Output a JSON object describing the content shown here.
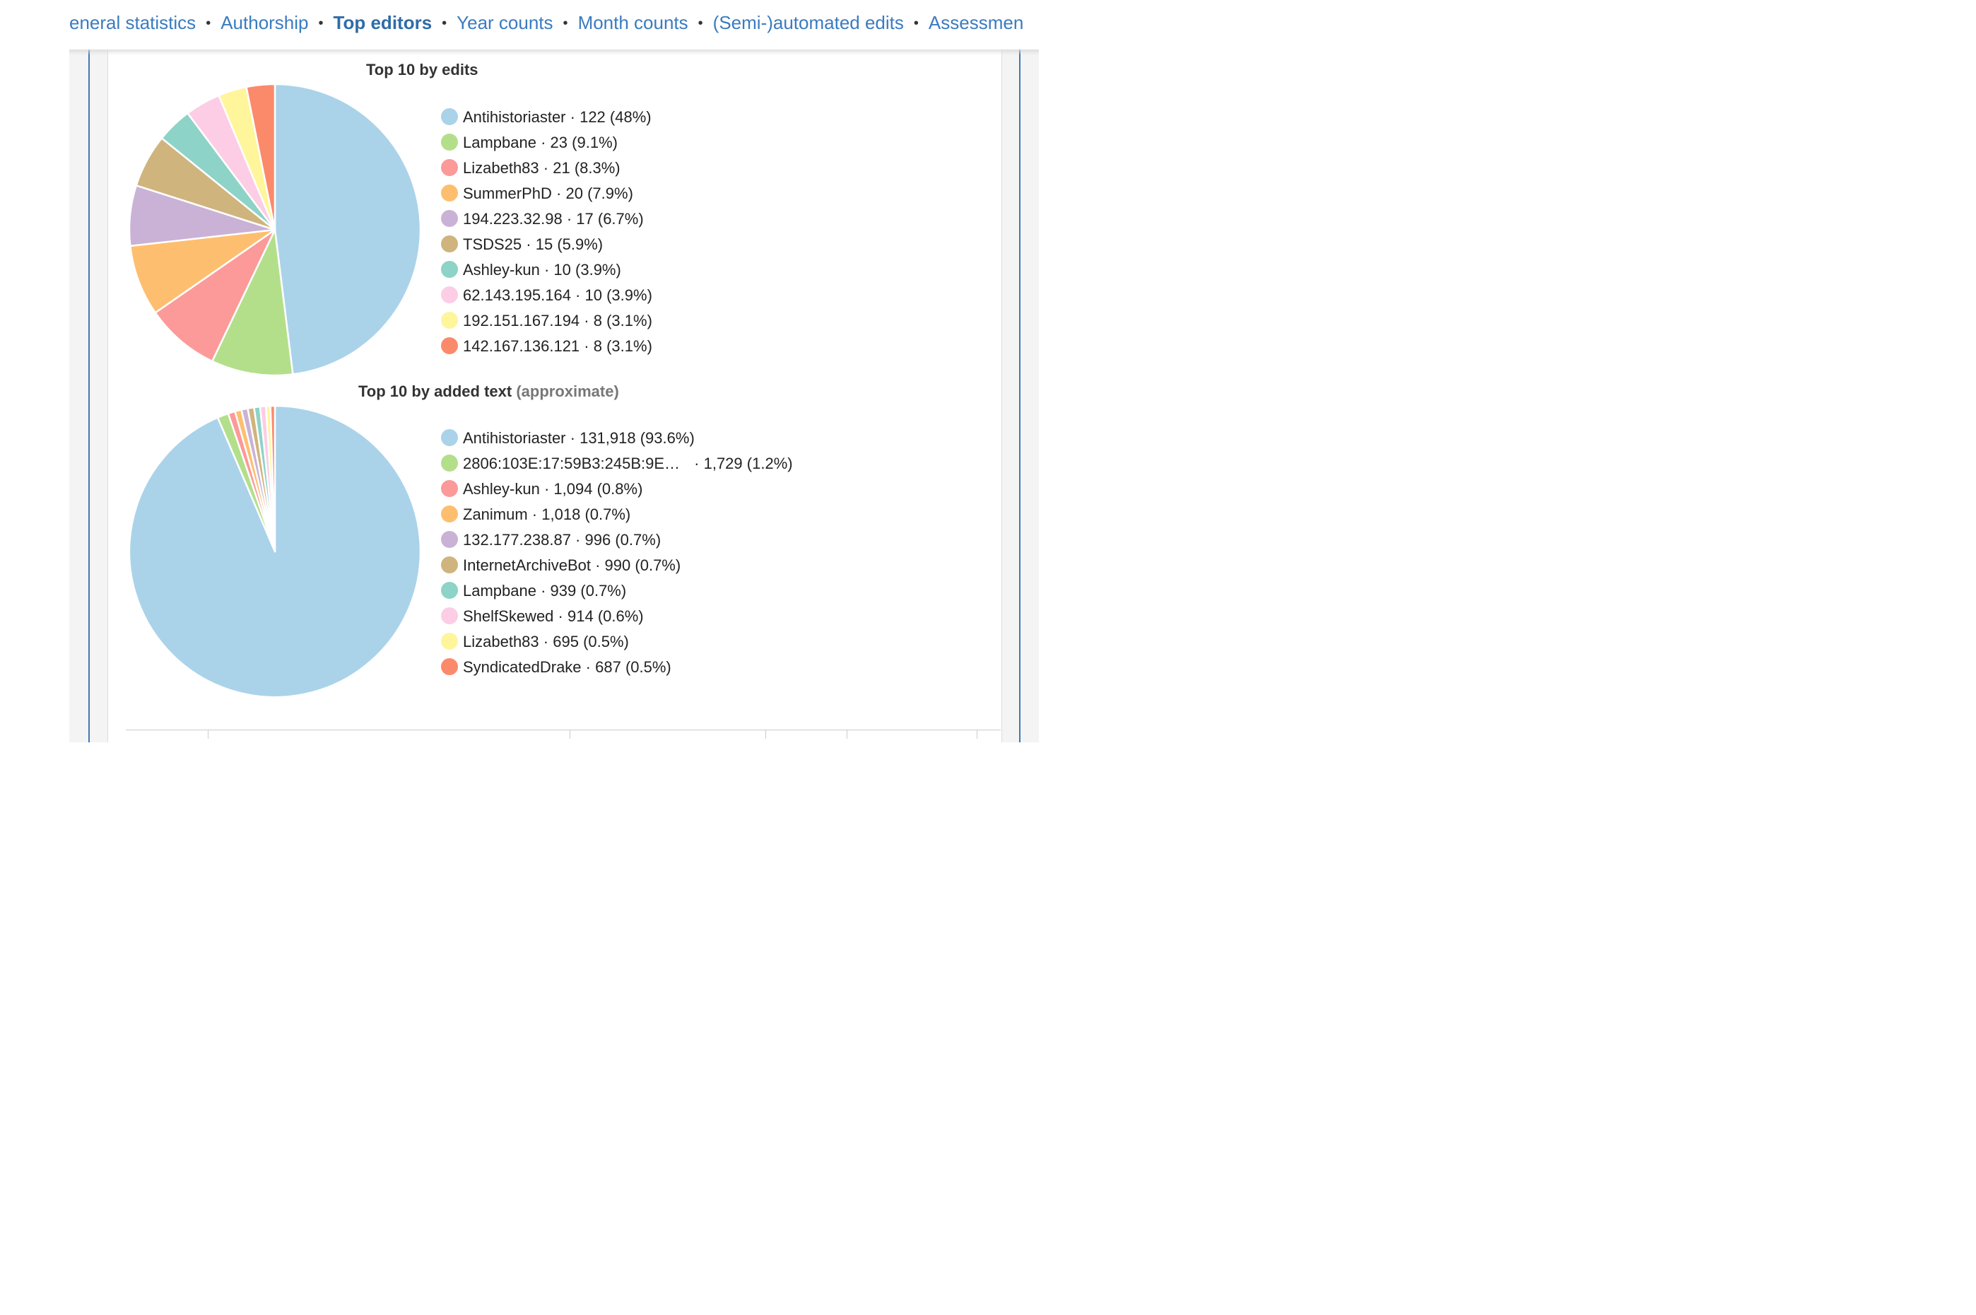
{
  "nav": {
    "items": [
      {
        "label": "eneral statistics",
        "active": false
      },
      {
        "label": "Authorship",
        "active": false
      },
      {
        "label": "Top editors",
        "active": true
      },
      {
        "label": "Year counts",
        "active": false
      },
      {
        "label": "Month counts",
        "active": false
      },
      {
        "label": "(Semi-)automated edits",
        "active": false
      },
      {
        "label": "Assessmen",
        "active": false
      }
    ],
    "separator": "•"
  },
  "charts": {
    "edits": {
      "title": "Top 10 by edits"
    },
    "added": {
      "title": "Top 10 by added text",
      "title_note": "(approximate)"
    }
  },
  "chart_data": [
    {
      "type": "pie",
      "title": "Top 10 by edits",
      "legend_position": "right",
      "labels": [
        "Antihistoriaster",
        "Lampbane",
        "Lizabeth83",
        "SummerPhD",
        "194.223.32.98",
        "TSDS25",
        "Ashley-kun",
        "62.143.195.164",
        "192.151.167.194",
        "142.167.136.121"
      ],
      "values": [
        122,
        23,
        21,
        20,
        17,
        15,
        10,
        10,
        8,
        8
      ],
      "value_text": [
        "122",
        "23",
        "21",
        "20",
        "17",
        "15",
        "10",
        "10",
        "8",
        "8"
      ],
      "percent_text": [
        "(48%)",
        "(9.1%)",
        "(8.3%)",
        "(7.9%)",
        "(6.7%)",
        "(5.9%)",
        "(3.9%)",
        "(3.9%)",
        "(3.1%)",
        "(3.1%)"
      ],
      "colors": [
        "#aad3ea",
        "#b3df8a",
        "#fb9a99",
        "#fdbf6f",
        "#cab2d6",
        "#cfb47d",
        "#8dd3c7",
        "#fccde5",
        "#fff59b",
        "#fb8a6b"
      ]
    },
    {
      "type": "pie",
      "title": "Top 10 by added text (approximate)",
      "legend_position": "right",
      "labels": [
        "Antihistoriaster",
        "2806:103E:17:59B3:245B:9E…",
        "Ashley-kun",
        "Zanimum",
        "132.177.238.87",
        "InternetArchiveBot",
        "Lampbane",
        "ShelfSkewed",
        "Lizabeth83",
        "SyndicatedDrake"
      ],
      "values": [
        131918,
        1729,
        1094,
        1018,
        996,
        990,
        939,
        914,
        695,
        687
      ],
      "value_text": [
        "131,918",
        "1,729",
        "1,094",
        "1,018",
        "996",
        "990",
        "939",
        "914",
        "695",
        "687"
      ],
      "percent_text": [
        "(93.6%)",
        "(1.2%)",
        "(0.8%)",
        "(0.7%)",
        "(0.7%)",
        "(0.7%)",
        "(0.7%)",
        "(0.6%)",
        "(0.5%)",
        "(0.5%)"
      ],
      "colors": [
        "#aad3ea",
        "#b3df8a",
        "#fb9a99",
        "#fdbf6f",
        "#cab2d6",
        "#cfb47d",
        "#8dd3c7",
        "#fccde5",
        "#fff59b",
        "#fb8a6b"
      ]
    }
  ]
}
